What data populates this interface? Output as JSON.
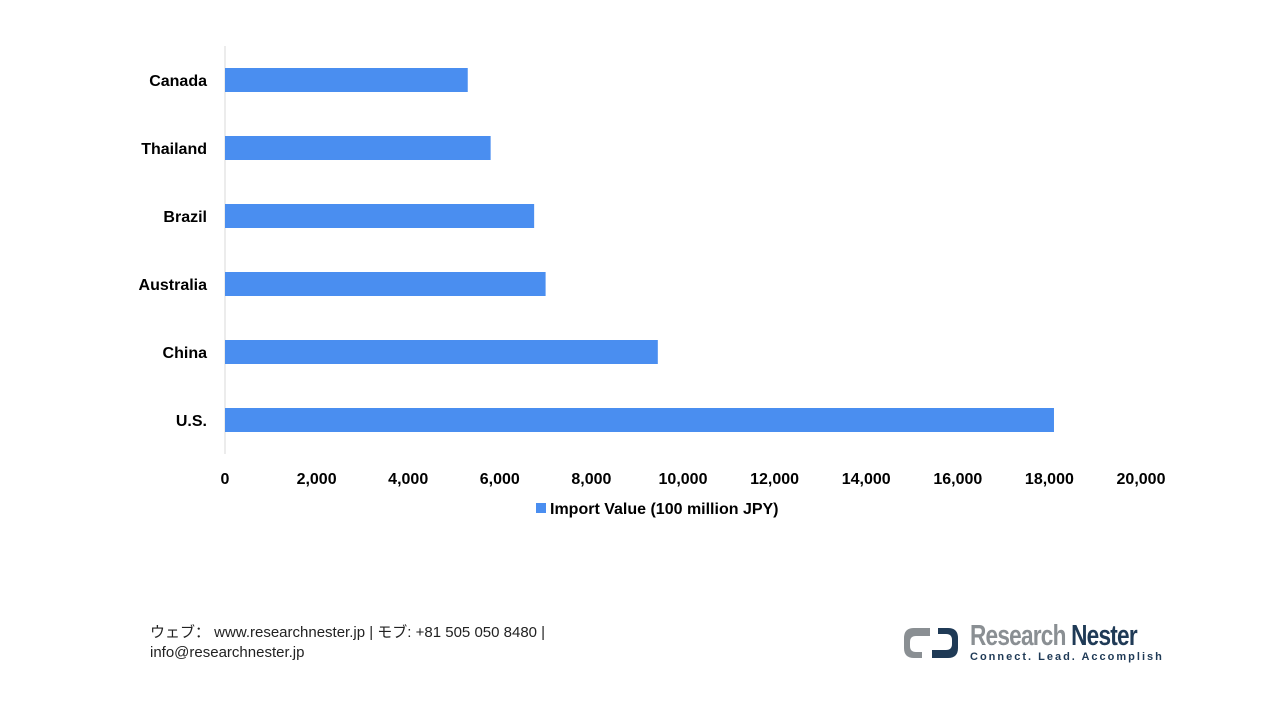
{
  "chart_data": {
    "type": "bar",
    "orientation": "horizontal",
    "categories": [
      "Canada",
      "Thailand",
      "Brazil",
      "Australia",
      "China",
      "U.S."
    ],
    "series": [
      {
        "name": "Import Value (100 million JPY)",
        "values": [
          5300,
          5800,
          6750,
          7000,
          9450,
          18100
        ]
      }
    ],
    "xlim": [
      0,
      20000
    ],
    "xticks": [
      "0",
      "2,000",
      "4,000",
      "6,000",
      "8,000",
      "10,000",
      "12,000",
      "14,000",
      "16,000",
      "18,000",
      "20,000"
    ],
    "bar_color": "#4a8ef0",
    "legend_position": "bottom",
    "grid": false
  },
  "footer": {
    "line1": "ウェブ： www.researchnester.jp  | モブ: +81 505 050 8480 |",
    "line2": "info@researchnester.jp"
  },
  "logo": {
    "word1": "Research",
    "word2": "Nester",
    "tagline": "Connect. Lead. Accomplish"
  }
}
